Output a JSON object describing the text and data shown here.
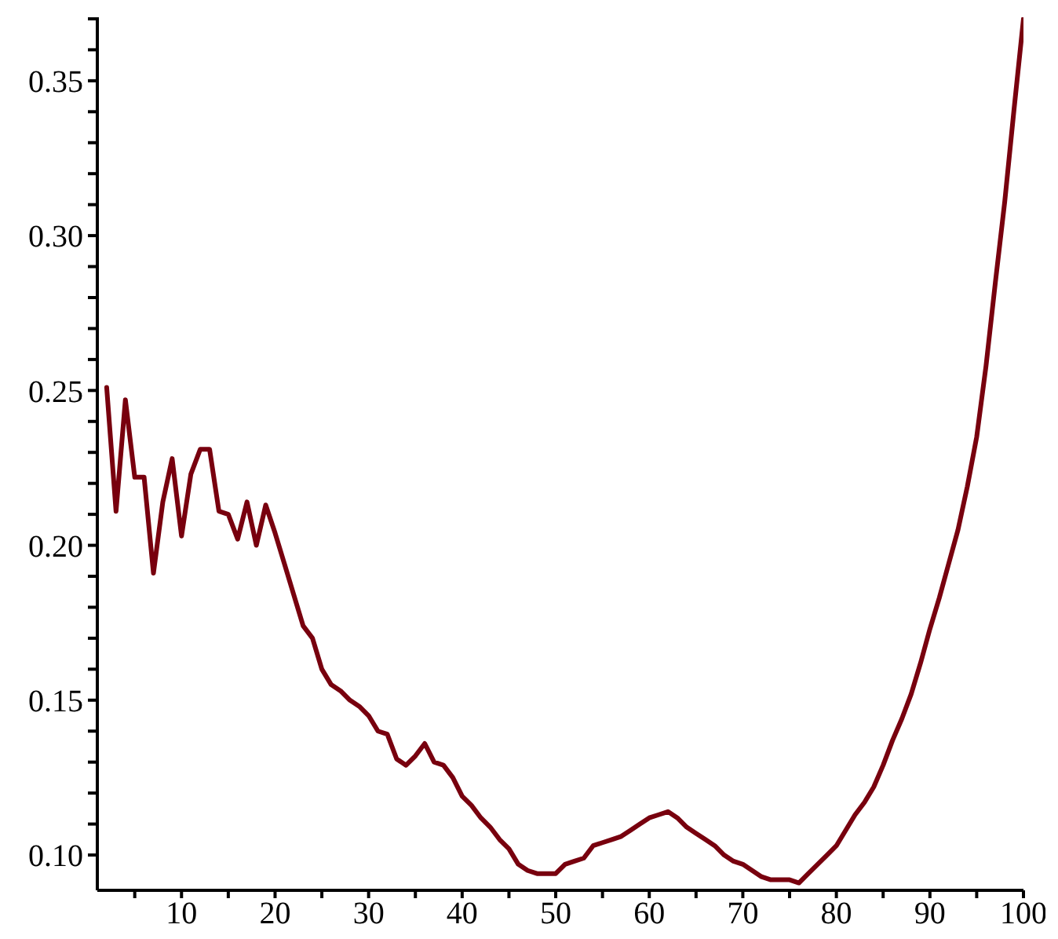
{
  "chart_data": {
    "type": "line",
    "color": "#78000e",
    "marker": "none",
    "line_style": "solid",
    "x": [
      2,
      3,
      4,
      5,
      6,
      7,
      8,
      9,
      10,
      11,
      12,
      13,
      14,
      15,
      16,
      17,
      18,
      19,
      20,
      21,
      22,
      23,
      24,
      25,
      26,
      27,
      28,
      29,
      30,
      31,
      32,
      33,
      34,
      35,
      36,
      37,
      38,
      39,
      40,
      41,
      42,
      43,
      44,
      45,
      46,
      47,
      48,
      49,
      50,
      51,
      52,
      53,
      54,
      55,
      56,
      57,
      58,
      59,
      60,
      61,
      62,
      63,
      64,
      65,
      66,
      67,
      68,
      69,
      70,
      71,
      72,
      73,
      74,
      75,
      76,
      77,
      78,
      79,
      80,
      81,
      82,
      83,
      84,
      85,
      86,
      87,
      88,
      89,
      90,
      91,
      92,
      93,
      94,
      95,
      96,
      97,
      98,
      99,
      100
    ],
    "values": [
      0.251,
      0.211,
      0.247,
      0.222,
      0.222,
      0.191,
      0.214,
      0.228,
      0.203,
      0.223,
      0.231,
      0.231,
      0.211,
      0.21,
      0.202,
      0.214,
      0.2,
      0.213,
      0.204,
      0.194,
      0.184,
      0.174,
      0.17,
      0.16,
      0.155,
      0.153,
      0.15,
      0.148,
      0.145,
      0.14,
      0.139,
      0.131,
      0.129,
      0.132,
      0.136,
      0.13,
      0.129,
      0.125,
      0.119,
      0.116,
      0.112,
      0.109,
      0.105,
      0.102,
      0.097,
      0.095,
      0.094,
      0.094,
      0.094,
      0.097,
      0.098,
      0.099,
      0.103,
      0.104,
      0.105,
      0.106,
      0.108,
      0.11,
      0.112,
      0.113,
      0.114,
      0.112,
      0.109,
      0.107,
      0.105,
      0.103,
      0.1,
      0.098,
      0.097,
      0.095,
      0.093,
      0.092,
      0.092,
      0.092,
      0.091,
      0.094,
      0.097,
      0.1,
      0.103,
      0.108,
      0.113,
      0.117,
      0.122,
      0.129,
      0.137,
      0.144,
      0.152,
      0.162,
      0.173,
      0.183,
      0.194,
      0.205,
      0.219,
      0.235,
      0.258,
      0.285,
      0.311,
      0.341,
      0.37
    ],
    "xlim": [
      1,
      100
    ],
    "ylim": [
      0.0886,
      0.3705
    ],
    "xticks": [
      {
        "value": 5,
        "label": null
      },
      10,
      {
        "value": 15,
        "label": null
      },
      20,
      {
        "value": 25,
        "label": null
      },
      30,
      {
        "value": 35,
        "label": null
      },
      40,
      {
        "value": 45,
        "label": null
      },
      50,
      {
        "value": 55,
        "label": null
      },
      60,
      {
        "value": 65,
        "label": null
      },
      70,
      {
        "value": 75,
        "label": null
      },
      80,
      {
        "value": 85,
        "label": null
      },
      90,
      {
        "value": 95,
        "label": null
      },
      100
    ],
    "yticks": [
      {
        "value": 0.1,
        "label": "0.10"
      },
      {
        "value": 0.11,
        "label": null
      },
      {
        "value": 0.12,
        "label": null
      },
      {
        "value": 0.13,
        "label": null
      },
      {
        "value": 0.14,
        "label": null
      },
      {
        "value": 0.15,
        "label": "0.15"
      },
      {
        "value": 0.16,
        "label": null
      },
      {
        "value": 0.17,
        "label": null
      },
      {
        "value": 0.18,
        "label": null
      },
      {
        "value": 0.19,
        "label": null
      },
      {
        "value": 0.2,
        "label": "0.20"
      },
      {
        "value": 0.21,
        "label": null
      },
      {
        "value": 0.22,
        "label": null
      },
      {
        "value": 0.23,
        "label": null
      },
      {
        "value": 0.24,
        "label": null
      },
      {
        "value": 0.25,
        "label": "0.25"
      },
      {
        "value": 0.26,
        "label": null
      },
      {
        "value": 0.27,
        "label": null
      },
      {
        "value": 0.28,
        "label": null
      },
      {
        "value": 0.29,
        "label": null
      },
      {
        "value": 0.3,
        "label": "0.30"
      },
      {
        "value": 0.31,
        "label": null
      },
      {
        "value": 0.32,
        "label": null
      },
      {
        "value": 0.33,
        "label": null
      },
      {
        "value": 0.34,
        "label": null
      },
      {
        "value": 0.35,
        "label": "0.35"
      },
      {
        "value": 0.36,
        "label": null
      },
      {
        "value": 0.37,
        "label": null
      }
    ]
  }
}
